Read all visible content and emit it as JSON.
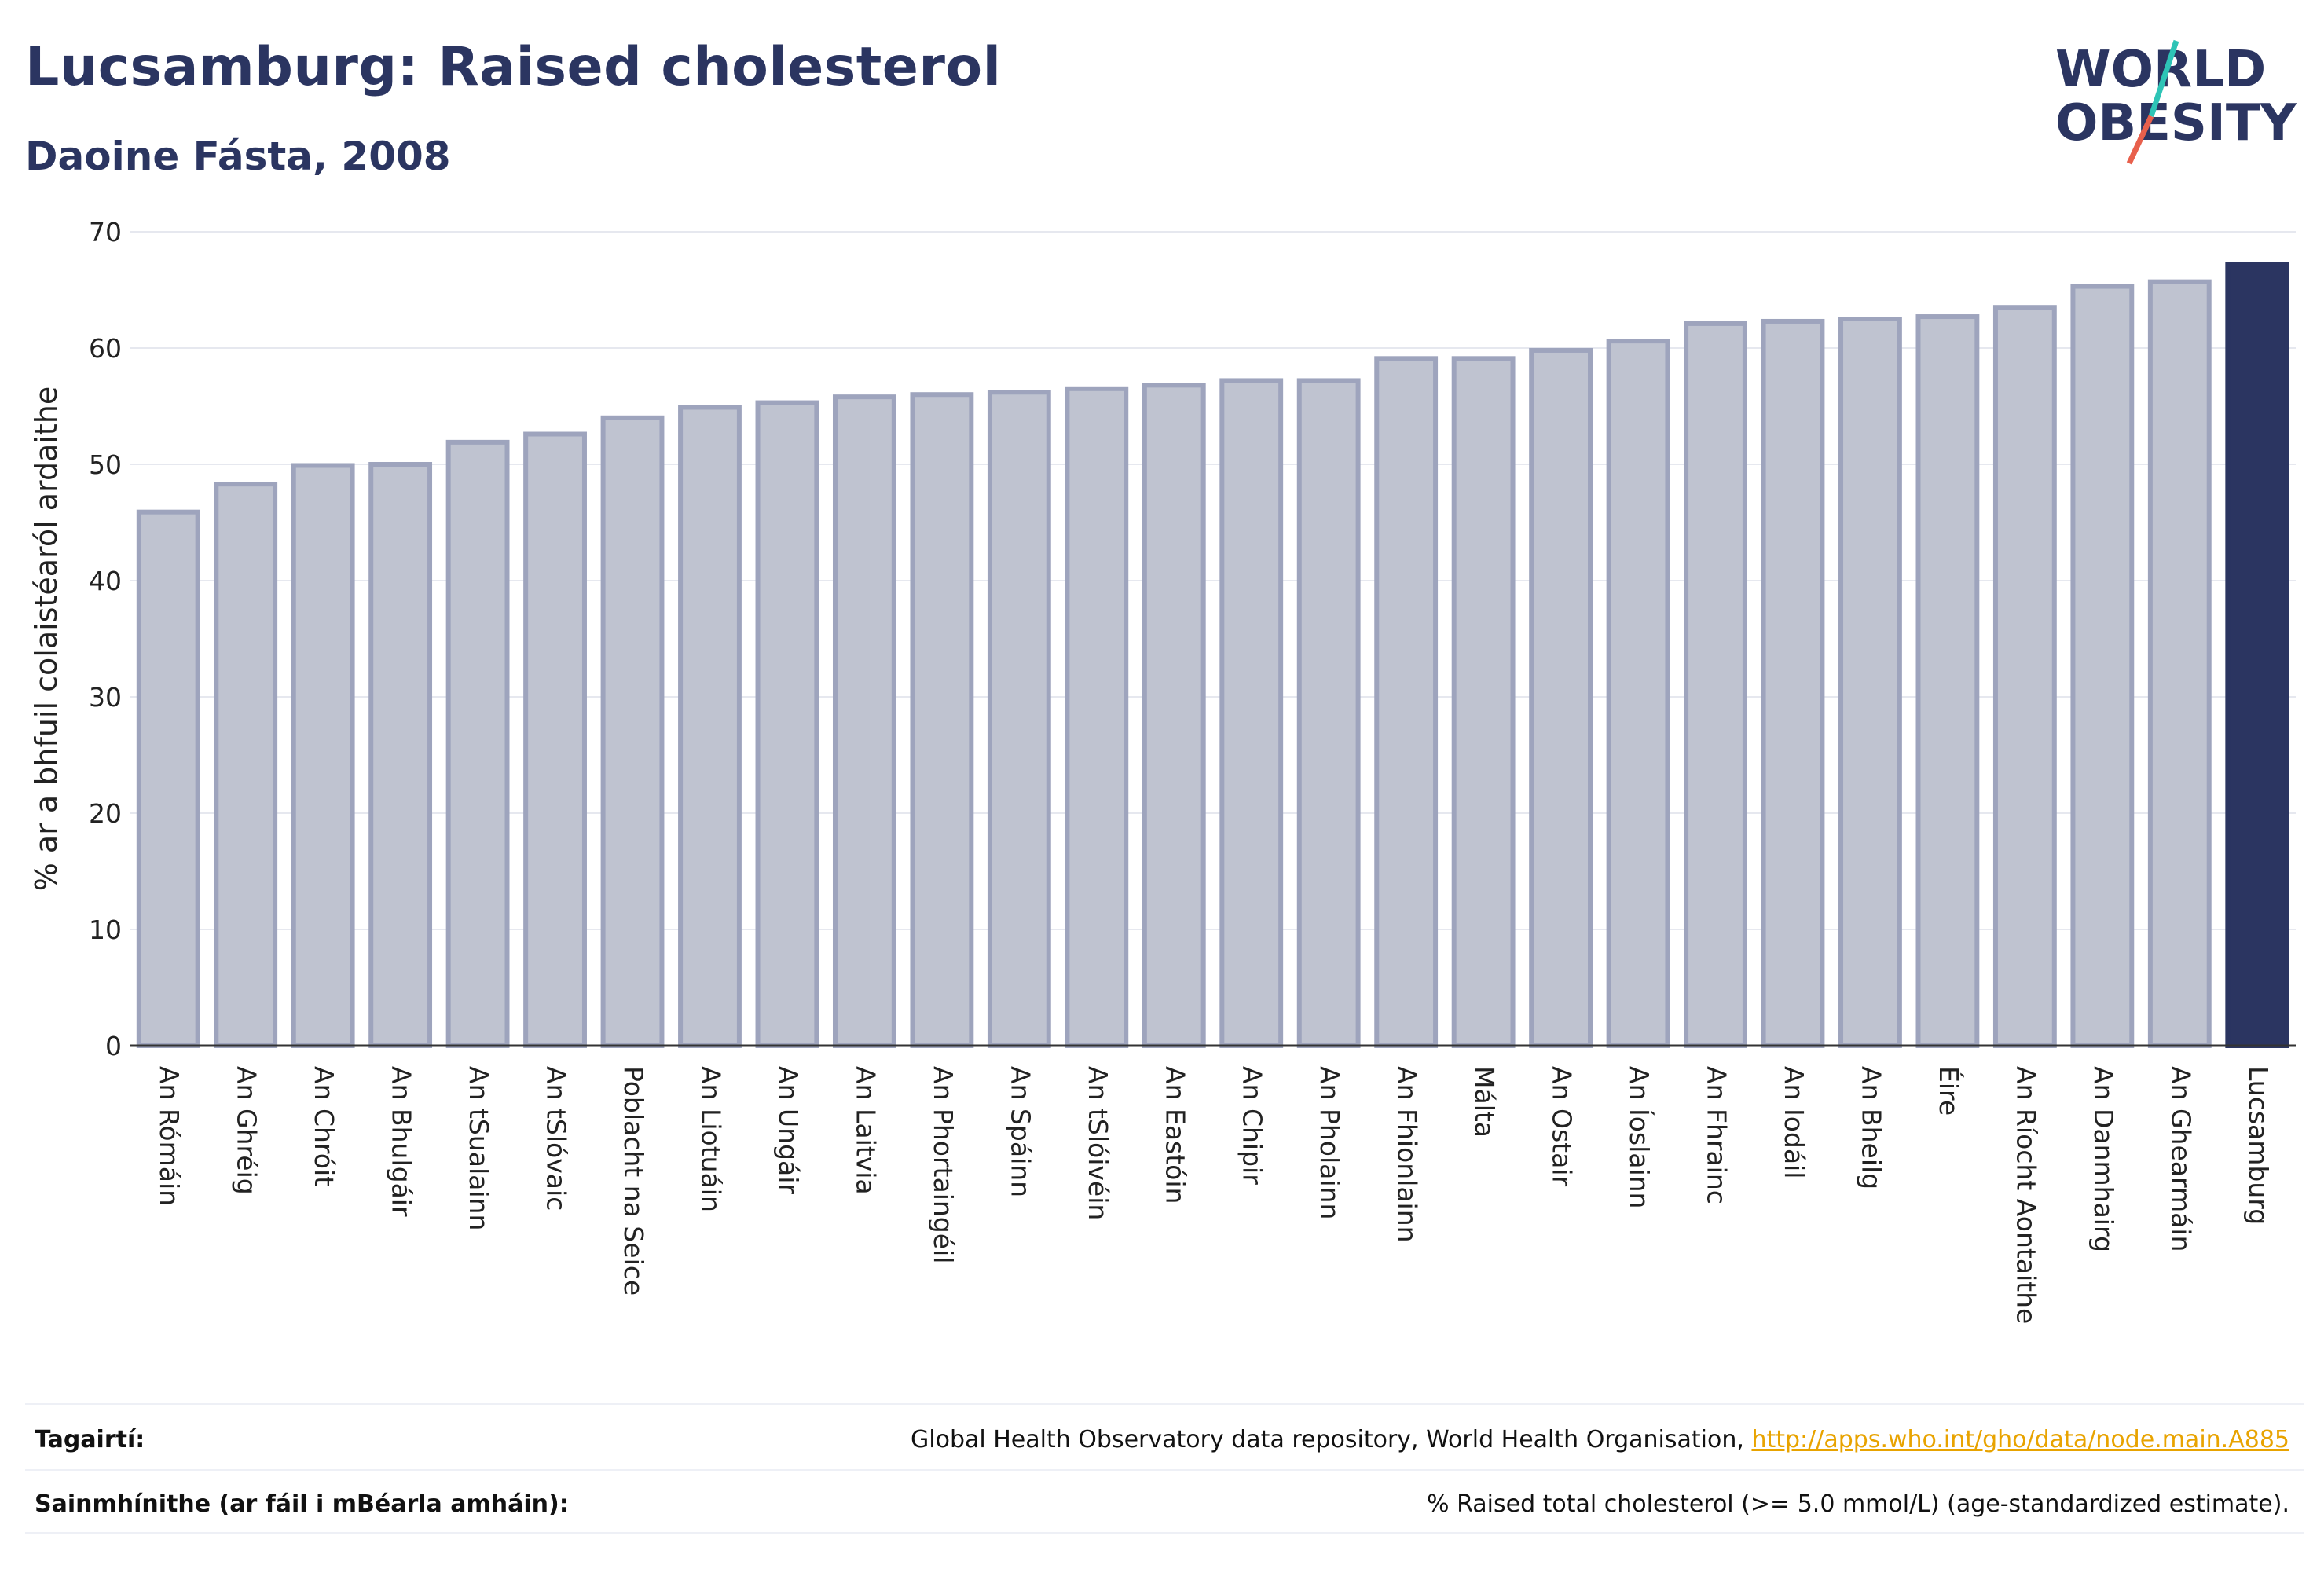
{
  "header": {
    "title": "Lucsamburg: Raised cholesterol",
    "subtitle": "Daoine Fásta, 2008"
  },
  "logo": {
    "line1": "WORLD",
    "line2": "OBESITY",
    "colors": {
      "text": "#2b3561",
      "slash_top": "#2ec4b6",
      "slash_bottom": "#e8604c"
    }
  },
  "colors": {
    "bar_fill": "#bfc3d0",
    "bar_stroke": "#9ea4bd",
    "highlight_fill": "#2b3561",
    "grid": "#e6e8ef",
    "axis": "#333333"
  },
  "chart_data": {
    "type": "bar",
    "title": "Lucsamburg: Raised cholesterol",
    "subtitle": "Daoine Fásta, 2008",
    "xlabel": "",
    "ylabel": "% ar a bhfuil colaistéaról ardaithe",
    "ylim": [
      0,
      70
    ],
    "yticks": [
      0,
      10,
      20,
      30,
      40,
      50,
      60,
      70
    ],
    "grid": true,
    "highlight": "Lucsamburg",
    "categories": [
      "An Rómáin",
      "An Ghréig",
      "An Chróit",
      "An Bhulgáir",
      "An tSualainn",
      "An tSlóvaic",
      "Poblacht na Seice",
      "An Liotuáin",
      "An Ungáir",
      "An Laitvia",
      "An Phortaingéil",
      "An Spáinn",
      "An tSlóivéin",
      "An Eastóin",
      "An Chipir",
      "An Pholainn",
      "An Fhionlainn",
      "Málta",
      "An Ostair",
      "An Íoslainn",
      "An Fhrainc",
      "An Iodáil",
      "An Bheilg",
      "Éire",
      "An Ríocht Aontaithe",
      "An Danmhairg",
      "An Ghearmáin",
      "Lucsamburg"
    ],
    "values": [
      45.9,
      48.3,
      49.9,
      50.0,
      51.9,
      52.6,
      54.0,
      54.9,
      55.3,
      55.8,
      56.0,
      56.2,
      56.5,
      56.8,
      57.2,
      57.2,
      59.1,
      59.1,
      59.8,
      60.6,
      62.1,
      62.3,
      62.5,
      62.7,
      63.5,
      65.3,
      65.7,
      67.2
    ]
  },
  "footer": {
    "references_label": "Tagairtí:",
    "references_text": "Global Health Observatory data repository, World Health Organisation, ",
    "references_link": "http://apps.who.int/gho/data/node.main.A885",
    "definitions_label": "Sainmhínithe (ar fáil i mBéarla amháin):",
    "definitions_text": "% Raised total cholesterol (>= 5.0 mmol/L) (age-standardized estimate)."
  }
}
